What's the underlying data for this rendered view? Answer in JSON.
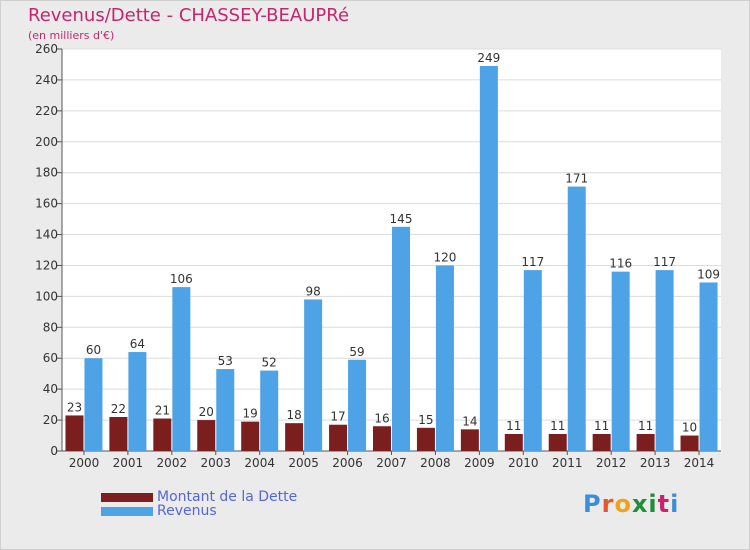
{
  "chart_data": {
    "type": "bar",
    "title": "Revenus/Dette - CHASSEY-BEAUPRé",
    "subtitle": "(en milliers d'€)",
    "categories": [
      "2000",
      "2001",
      "2002",
      "2003",
      "2004",
      "2005",
      "2006",
      "2007",
      "2008",
      "2009",
      "2010",
      "2011",
      "2012",
      "2013",
      "2014"
    ],
    "series": [
      {
        "name": "Montant de la Dette",
        "color": "#7a1e1e",
        "values": [
          23,
          22,
          21,
          20,
          19,
          18,
          17,
          16,
          15,
          14,
          11,
          11,
          11,
          11,
          10
        ]
      },
      {
        "name": "Revenus",
        "color": "#4ea3e6",
        "values": [
          60,
          64,
          106,
          53,
          52,
          98,
          59,
          145,
          120,
          249,
          117,
          171,
          116,
          117,
          109
        ]
      }
    ],
    "ylim": [
      0,
      260
    ],
    "yticks": [
      0,
      20,
      40,
      60,
      80,
      100,
      120,
      140,
      160,
      180,
      200,
      220,
      240,
      260
    ],
    "grid": true,
    "legend_position": "bottom-left"
  },
  "legend": {
    "items": [
      {
        "label": "Montant de la Dette",
        "color": "#7a1e1e"
      },
      {
        "label": "Revenus",
        "color": "#4ea3e6"
      }
    ]
  },
  "brand": {
    "letters": [
      {
        "ch": "P",
        "color": "#3b8fd9"
      },
      {
        "ch": "r",
        "color": "#e35a2a"
      },
      {
        "ch": "o",
        "color": "#f0a21b"
      },
      {
        "ch": "x",
        "color": "#1f8f3a"
      },
      {
        "ch": "i",
        "color": "#1f8f3a"
      },
      {
        "ch": "t",
        "color": "#c8246e"
      },
      {
        "ch": "i",
        "color": "#3b8fd9"
      }
    ]
  }
}
